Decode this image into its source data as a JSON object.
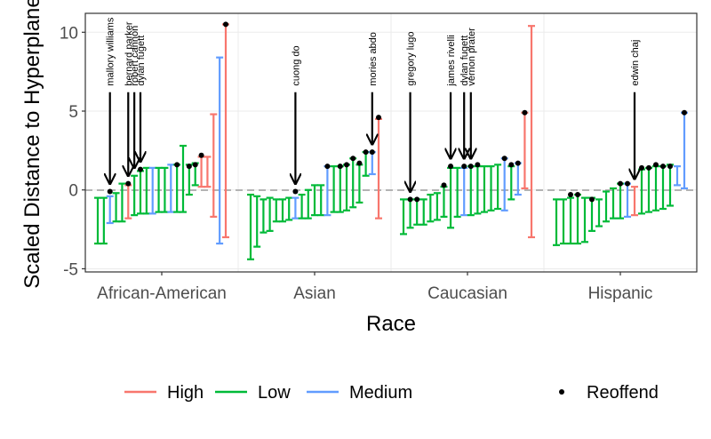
{
  "chart_data": {
    "type": "errorbar",
    "title": "",
    "xlabel": "Race",
    "ylabel": "Scaled Distance to Hyperplane",
    "ylim": [
      -5.2,
      11.2
    ],
    "yticks": [
      -5,
      0,
      5,
      10
    ],
    "reference_line": {
      "y": 0,
      "style": "dashed",
      "color": "#b3b3b3"
    },
    "grid": true,
    "legend_position": "bottom",
    "legend": {
      "colour": [
        {
          "name": "High",
          "color": "#f8766d"
        },
        {
          "name": "Low",
          "color": "#00ba38"
        },
        {
          "name": "Medium",
          "color": "#619cff"
        }
      ],
      "shape": [
        {
          "name": "Reoffend"
        }
      ]
    },
    "panels": [
      {
        "category": "African-American",
        "intervals": [
          {
            "low": -3.4,
            "high": -0.5,
            "risk": "Low"
          },
          {
            "low": -3.4,
            "high": -0.5,
            "risk": "Low"
          },
          {
            "low": -2.1,
            "high": -0.4,
            "risk": "Medium",
            "point": -0.1
          },
          {
            "low": -2.0,
            "high": -0.2,
            "risk": "Low"
          },
          {
            "low": -2.0,
            "high": 0.4,
            "risk": "Low"
          },
          {
            "low": -1.8,
            "high": 0.3,
            "risk": "High",
            "point": 0.4
          },
          {
            "low": -1.6,
            "high": 0.9,
            "risk": "Low"
          },
          {
            "low": -1.5,
            "high": 1.2,
            "risk": "Low",
            "point": 1.3
          },
          {
            "low": -1.5,
            "high": 1.4,
            "risk": "Low"
          },
          {
            "low": -1.5,
            "high": 1.4,
            "risk": "Medium"
          },
          {
            "low": -1.4,
            "high": 1.4,
            "risk": "Low"
          },
          {
            "low": -1.4,
            "high": 1.4,
            "risk": "Low"
          },
          {
            "low": -1.4,
            "high": 1.6,
            "risk": "Medium"
          },
          {
            "low": -1.4,
            "high": 1.6,
            "risk": "Low",
            "point": 1.6
          },
          {
            "low": -1.4,
            "high": 2.8,
            "risk": "Low"
          },
          {
            "low": -0.3,
            "high": 1.6,
            "risk": "Low",
            "point": 1.5
          },
          {
            "low": 0.3,
            "high": 1.7,
            "risk": "Low",
            "point": 1.6
          },
          {
            "low": 0.2,
            "high": 2.1,
            "risk": "High",
            "point": 2.2
          },
          {
            "low": 0.2,
            "high": 2.1,
            "risk": "High"
          },
          {
            "low": -1.7,
            "high": 4.8,
            "risk": "High"
          },
          {
            "low": -3.4,
            "high": 8.4,
            "risk": "Medium"
          },
          {
            "low": -3.0,
            "high": 10.5,
            "risk": "High",
            "point": 10.5
          }
        ],
        "annotations": [
          {
            "label": "mallory williams",
            "index": 2
          },
          {
            "label": "bernard parker",
            "index": 5
          },
          {
            "label": "robert cannon",
            "index": 6
          },
          {
            "label": "dylan fugett",
            "index": 7
          }
        ]
      },
      {
        "category": "Asian",
        "intervals": [
          {
            "low": -4.4,
            "high": -0.3,
            "risk": "Low"
          },
          {
            "low": -3.6,
            "high": -0.4,
            "risk": "Low"
          },
          {
            "low": -2.7,
            "high": -0.6,
            "risk": "Low"
          },
          {
            "low": -2.6,
            "high": -0.5,
            "risk": "Low"
          },
          {
            "low": -2.0,
            "high": -0.6,
            "risk": "Low"
          },
          {
            "low": -2.0,
            "high": -0.6,
            "risk": "Low"
          },
          {
            "low": -1.9,
            "high": -0.5,
            "risk": "Low"
          },
          {
            "low": -1.8,
            "high": -0.5,
            "risk": "Medium",
            "point": -0.1
          },
          {
            "low": -1.8,
            "high": -0.3,
            "risk": "Low"
          },
          {
            "low": -1.8,
            "high": 0.0,
            "risk": "Low"
          },
          {
            "low": -1.6,
            "high": 0.3,
            "risk": "Low"
          },
          {
            "low": -1.6,
            "high": 0.3,
            "risk": "Low"
          },
          {
            "low": -1.6,
            "high": 1.5,
            "risk": "Medium",
            "point": 1.5
          },
          {
            "low": -1.4,
            "high": 1.5,
            "risk": "Low"
          },
          {
            "low": -1.4,
            "high": 1.5,
            "risk": "Low",
            "point": 1.5
          },
          {
            "low": -1.3,
            "high": 1.6,
            "risk": "Low",
            "point": 1.6
          },
          {
            "low": -1.1,
            "high": 2.0,
            "risk": "Low",
            "point": 2.0
          },
          {
            "low": -0.8,
            "high": 1.6,
            "risk": "Low",
            "point": 1.7
          },
          {
            "low": 0.9,
            "high": 2.4,
            "risk": "Low",
            "point": 2.4
          },
          {
            "low": 1.0,
            "high": 2.4,
            "risk": "Medium",
            "point": 2.4
          },
          {
            "low": -1.8,
            "high": 4.5,
            "risk": "High",
            "point": 4.6
          }
        ],
        "annotations": [
          {
            "label": "cuong do",
            "index": 7
          },
          {
            "label": "mories abdo",
            "index": 19
          }
        ]
      },
      {
        "category": "Caucasian",
        "intervals": [
          {
            "low": -2.8,
            "high": -0.6,
            "risk": "Low"
          },
          {
            "low": -2.4,
            "high": -0.6,
            "risk": "Low",
            "point": -0.6
          },
          {
            "low": -2.2,
            "high": -0.6,
            "risk": "Low",
            "point": -0.6
          },
          {
            "low": -2.2,
            "high": -0.6,
            "risk": "Low"
          },
          {
            "low": -2.0,
            "high": -0.3,
            "risk": "Low"
          },
          {
            "low": -1.9,
            "high": -0.2,
            "risk": "Low"
          },
          {
            "low": -1.7,
            "high": 0.2,
            "risk": "Low",
            "point": 0.3
          },
          {
            "low": -2.4,
            "high": 1.4,
            "risk": "Low",
            "point": 1.5
          },
          {
            "low": -1.7,
            "high": 1.4,
            "risk": "Low"
          },
          {
            "low": -1.6,
            "high": 1.4,
            "risk": "Medium",
            "point": 1.5
          },
          {
            "low": -1.6,
            "high": 1.5,
            "risk": "Low",
            "point": 1.5
          },
          {
            "low": -1.5,
            "high": 1.5,
            "risk": "Low",
            "point": 1.6
          },
          {
            "low": -1.4,
            "high": 1.5,
            "risk": "Low"
          },
          {
            "low": -1.3,
            "high": 1.5,
            "risk": "Low"
          },
          {
            "low": -1.2,
            "high": 1.6,
            "risk": "Low"
          },
          {
            "low": -1.3,
            "high": 2.0,
            "risk": "Medium",
            "point": 2.0
          },
          {
            "low": -0.6,
            "high": 1.5,
            "risk": "Low",
            "point": 1.6
          },
          {
            "low": -0.3,
            "high": 1.7,
            "risk": "Medium",
            "point": 1.7
          },
          {
            "low": 0.1,
            "high": 4.9,
            "risk": "High",
            "point": 4.9
          },
          {
            "low": -3.0,
            "high": 10.4,
            "risk": "High"
          }
        ],
        "annotations": [
          {
            "label": "gregory lugo",
            "index": 1
          },
          {
            "label": "james rivelli",
            "index": 7
          },
          {
            "label": "dylan fugett",
            "index": 9
          },
          {
            "label": "vernon prater",
            "index": 10
          }
        ]
      },
      {
        "category": "Hispanic",
        "intervals": [
          {
            "low": -3.5,
            "high": -0.6,
            "risk": "Low"
          },
          {
            "low": -3.4,
            "high": -0.6,
            "risk": "Low"
          },
          {
            "low": -3.4,
            "high": -0.5,
            "risk": "Low",
            "point": -0.3
          },
          {
            "low": -3.4,
            "high": -0.3,
            "risk": "Low",
            "point": -0.3
          },
          {
            "low": -3.3,
            "high": -0.5,
            "risk": "Low"
          },
          {
            "low": -2.6,
            "high": -0.5,
            "risk": "Low",
            "point": -0.6
          },
          {
            "low": -2.3,
            "high": -0.6,
            "risk": "Low"
          },
          {
            "low": -2.0,
            "high": -0.1,
            "risk": "Low"
          },
          {
            "low": -1.8,
            "high": 0.1,
            "risk": "Low"
          },
          {
            "low": -1.8,
            "high": 0.4,
            "risk": "Low",
            "point": 0.4
          },
          {
            "low": -1.7,
            "high": 0.4,
            "risk": "Medium",
            "point": 0.4
          },
          {
            "low": -1.6,
            "high": 0.2,
            "risk": "High"
          },
          {
            "low": -1.5,
            "high": 1.3,
            "risk": "Low",
            "point": 1.4
          },
          {
            "low": -1.4,
            "high": 1.4,
            "risk": "Low",
            "point": 1.4
          },
          {
            "low": -1.3,
            "high": 1.5,
            "risk": "Low",
            "point": 1.6
          },
          {
            "low": -1.2,
            "high": 1.5,
            "risk": "Low",
            "point": 1.5
          },
          {
            "low": -1.0,
            "high": 1.6,
            "risk": "Low",
            "point": 1.5
          },
          {
            "low": 0.3,
            "high": 1.5,
            "risk": "Medium"
          },
          {
            "low": 0.1,
            "high": 4.9,
            "risk": "Medium",
            "point": 4.9
          }
        ],
        "annotations": [
          {
            "label": "edwin chaj",
            "index": 11
          }
        ]
      }
    ]
  }
}
